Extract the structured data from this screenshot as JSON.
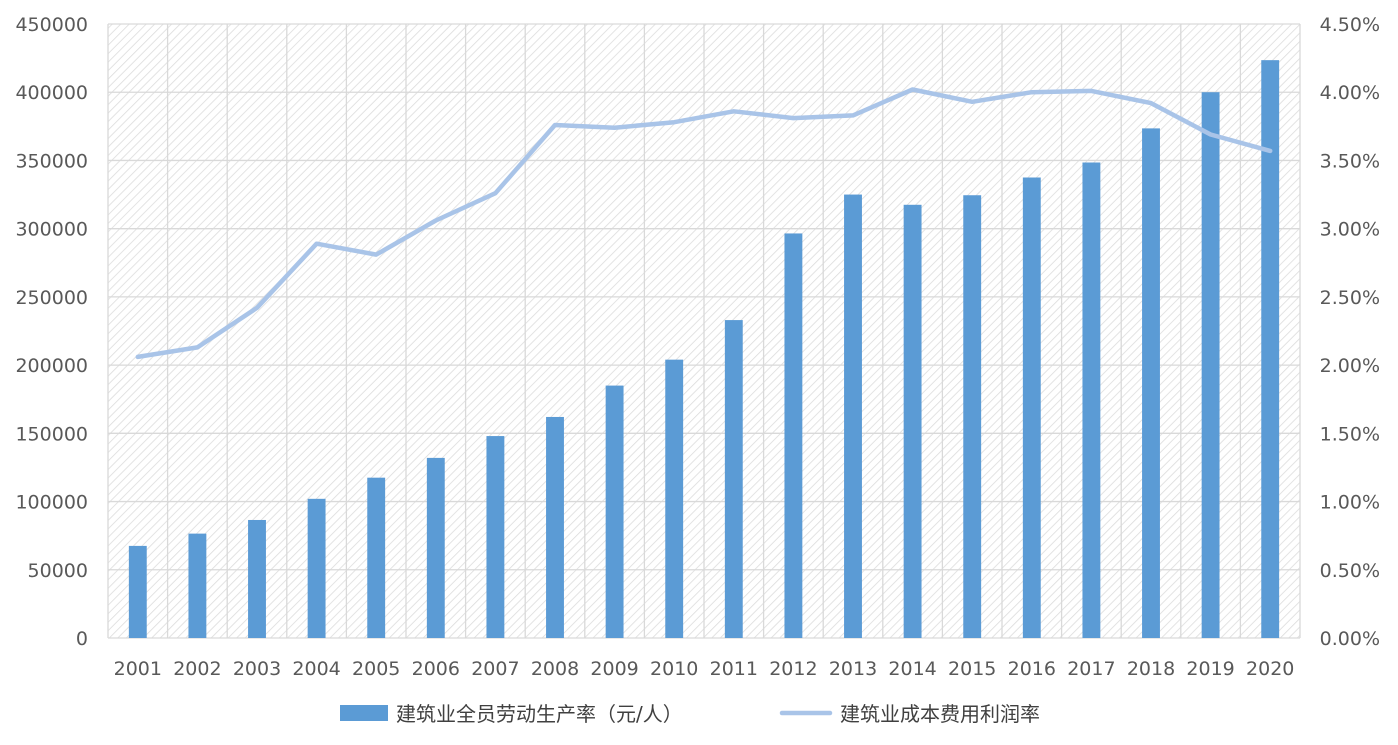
{
  "chart_data": {
    "type": "bar",
    "title": "",
    "xlabel": "",
    "ylabel": "",
    "y2label": "",
    "categories": [
      "2001",
      "2002",
      "2003",
      "2004",
      "2005",
      "2006",
      "2007",
      "2008",
      "2009",
      "2010",
      "2011",
      "2012",
      "2013",
      "2014",
      "2015",
      "2016",
      "2017",
      "2018",
      "2019",
      "2020"
    ],
    "series": [
      {
        "name": "建筑业全员劳动生产率（元/人）",
        "type": "bar",
        "axis": "left",
        "color": "#5B9BD5",
        "values": [
          67500,
          76500,
          86500,
          102000,
          117500,
          132000,
          148000,
          162000,
          185000,
          204000,
          233000,
          296500,
          325000,
          317500,
          324500,
          337500,
          348500,
          373500,
          400000,
          423500
        ]
      },
      {
        "name": "建筑业成本费用利润率",
        "type": "line",
        "axis": "right",
        "color": "#A9C4E8",
        "values": [
          0.0206,
          0.0213,
          0.0242,
          0.0289,
          0.0281,
          0.0306,
          0.0326,
          0.0376,
          0.0374,
          0.0378,
          0.0386,
          0.0381,
          0.0383,
          0.0402,
          0.0393,
          0.04,
          0.0401,
          0.0392,
          0.0369,
          0.0357
        ]
      }
    ],
    "ylim": [
      0,
      450000
    ],
    "y2lim": [
      0,
      0.045
    ],
    "yticks": [
      "0",
      "50000",
      "100000",
      "150000",
      "200000",
      "250000",
      "300000",
      "350000",
      "400000",
      "450000"
    ],
    "y2ticks": [
      "0.00%",
      "0.50%",
      "1.00%",
      "1.50%",
      "2.00%",
      "2.50%",
      "3.00%",
      "3.50%",
      "4.00%",
      "4.50%"
    ],
    "grid": true,
    "legend_position": "bottom"
  }
}
